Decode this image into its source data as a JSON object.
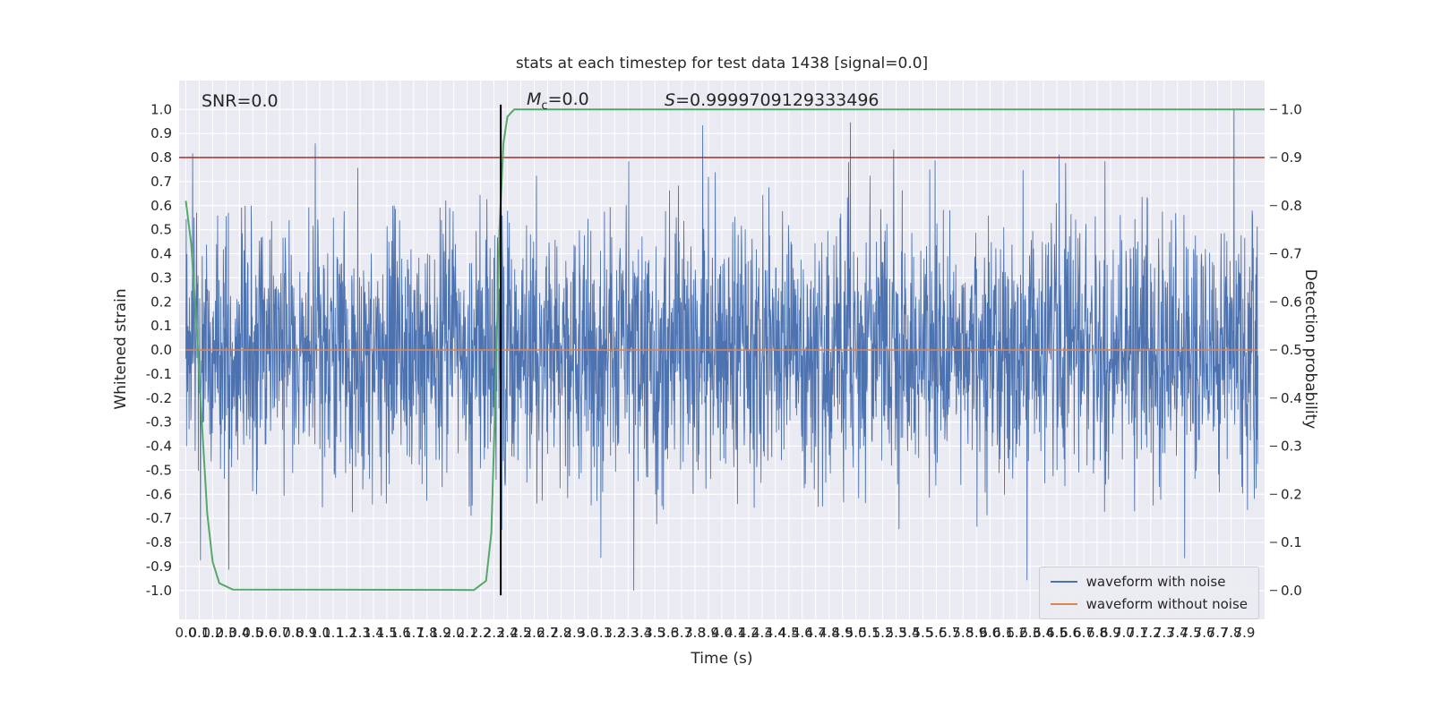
{
  "chart_data": {
    "type": "line",
    "title": "stats at each timestep for test data 1438 [signal=0.0]",
    "xlabel": "Time (s)",
    "ylabel_left": "Whitened strain",
    "ylabel_right": "Detection probability",
    "xlim": [
      -0.05,
      8.05
    ],
    "ylim_left": [
      -1.12,
      1.12
    ],
    "ylim_right": [
      -0.06,
      1.06
    ],
    "xticks": {
      "start": 0.0,
      "end": 7.9,
      "step": 0.1
    },
    "yticks_left": {
      "start": -1.0,
      "end": 1.0,
      "step": 0.1
    },
    "yticks_right": {
      "start": 0.0,
      "end": 1.0,
      "step": 0.1
    },
    "grid": true,
    "legend_position": "lower right",
    "legend": [
      {
        "label": "waveform with noise",
        "color": "#4c72b0"
      },
      {
        "label": "waveform without noise",
        "color": "#dd8452"
      }
    ],
    "annotations": {
      "snr": "SNR=0.0",
      "mc_base": "M",
      "mc_sub": "c",
      "mc_rest": "=0.0",
      "s_base": "S",
      "s_rest": "=0.9999709129333496"
    },
    "series": {
      "waveform_with_noise": {
        "kind": "stochastic-gaussian",
        "seed": 1438,
        "n": 3000,
        "std": 0.27,
        "clip": 1.0,
        "t_start": 0.0,
        "t_end": 8.0,
        "color": "#4c72b0"
      },
      "waveform_without_noise": {
        "kind": "constant",
        "value": 0.0,
        "t_start": 0.0,
        "t_end": 8.0,
        "color": "#dd8452"
      },
      "detection_probability": {
        "kind": "keypoints",
        "axis": "right",
        "color": "#55a868",
        "points": [
          [
            0,
            0.81
          ],
          [
            0.04,
            0.72
          ],
          [
            0.08,
            0.55
          ],
          [
            0.12,
            0.35
          ],
          [
            0.16,
            0.16
          ],
          [
            0.2,
            0.06
          ],
          [
            0.25,
            0.015
          ],
          [
            0.35,
            0.002
          ],
          [
            2.15,
            0.001
          ],
          [
            2.24,
            0.02
          ],
          [
            2.28,
            0.12
          ],
          [
            2.31,
            0.4
          ],
          [
            2.34,
            0.75
          ],
          [
            2.37,
            0.93
          ],
          [
            2.4,
            0.985
          ],
          [
            2.45,
            1.0
          ],
          [
            8.05,
            1.0
          ]
        ]
      }
    },
    "threshold_line": {
      "strain": 0.8,
      "prob": 0.9,
      "color": "#a52a2a"
    },
    "event_line": {
      "time": 2.35,
      "color": "#000000"
    },
    "colors": {
      "figure_bg": "#ffffff",
      "plot_bg": "#eaeaf2",
      "grid": "#ffffff",
      "text": "#262626"
    }
  }
}
